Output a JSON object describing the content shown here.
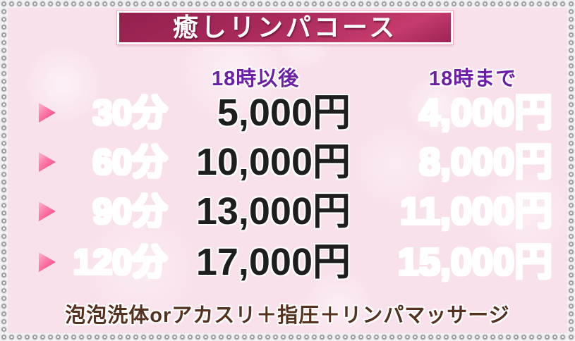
{
  "title": "癒しリンパコース",
  "columns": {
    "late_label": "18時以後",
    "early_label": "18時まで"
  },
  "rows": [
    {
      "duration": "30分",
      "late_price": "5,000円",
      "early_price": "4,000円"
    },
    {
      "duration": "60分",
      "late_price": "10,000円",
      "early_price": "8,000円"
    },
    {
      "duration": "90分",
      "late_price": "13,000円",
      "early_price": "11,000円"
    },
    {
      "duration": "120分",
      "late_price": "17,000円",
      "early_price": "15,000円"
    }
  ],
  "note": "泡泡洗体orアカスリ＋指圧＋リンパマッサージ",
  "icons": {
    "bullet": "triangle-right-icon",
    "border": "rhinestone-chain-border"
  },
  "colors": {
    "background_pink": "#f9e1ec",
    "banner_dark": "#93204e",
    "banner_bright": "#c63b6e",
    "title_white": "#ffffff",
    "header_purple": "#6d1fa7",
    "duration_brown": "#5c3a26",
    "late_price_black": "#1e1e1e",
    "early_price_crimson": "#c0164e",
    "bullet_pink": "#ef3b7d",
    "note_brown": "#55311f"
  }
}
